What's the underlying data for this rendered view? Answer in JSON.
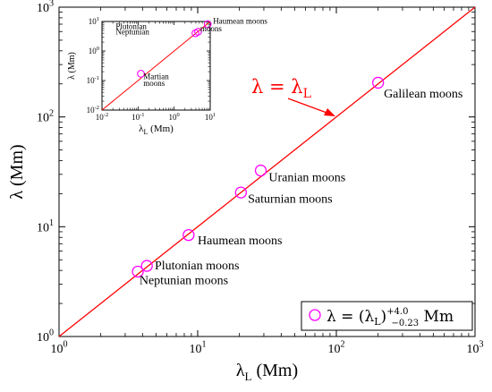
{
  "chart_data": [
    {
      "type": "scatter",
      "role": "main",
      "xscale": "log",
      "yscale": "log",
      "xlim": [
        1,
        1000
      ],
      "ylim": [
        1,
        1000
      ],
      "xlabel_main": "λ",
      "xlabel_sub": "L",
      "xlabel_unit": "(Mm)",
      "ylabel_main": "λ",
      "ylabel_unit": "(Mm)",
      "x_ticks": [
        1,
        10,
        100,
        1000
      ],
      "y_ticks": [
        1,
        10,
        100,
        1000
      ],
      "tick_base": "10",
      "tick_exponents": [
        "0",
        "1",
        "2",
        "3"
      ],
      "marker_color": "#ff00ff",
      "line_color": "#ff0000",
      "points": [
        {
          "x": 3.7,
          "y": 3.9
        },
        {
          "x": 4.3,
          "y": 4.4
        },
        {
          "x": 8.6,
          "y": 8.4
        },
        {
          "x": 20.5,
          "y": 20.5
        },
        {
          "x": 28.5,
          "y": 32.5
        },
        {
          "x": 200,
          "y": 205
        }
      ],
      "line": {
        "x": [
          1,
          1000
        ],
        "y": [
          1,
          1000
        ]
      },
      "labels": [
        {
          "text": "Neptunian moons",
          "x": 3.8,
          "y": 3.0
        },
        {
          "text": "Plutonian moons",
          "x": 4.9,
          "y": 4.1
        },
        {
          "text": "Haumean moons",
          "x": 10.0,
          "y": 6.9
        },
        {
          "text": "Saturnian moons",
          "x": 23.0,
          "y": 16.5
        },
        {
          "text": "Uranian moons",
          "x": 32.5,
          "y": 26.0
        },
        {
          "text": "Galilean moons",
          "x": 220,
          "y": 150
        }
      ],
      "eq_annotation": {
        "main": "λ = λ",
        "sub": "L"
      },
      "legend": {
        "position": "bottom-right",
        "lhs": "λ = (λ",
        "lhs_sub": "L",
        "close": ")",
        "sup": "+4.0",
        "sub": "−0.23",
        "unit": "Mm"
      }
    },
    {
      "type": "scatter",
      "role": "inset",
      "xscale": "log",
      "yscale": "log",
      "xlim": [
        0.01,
        10
      ],
      "ylim": [
        0.01,
        10
      ],
      "xlabel_main": "λ",
      "xlabel_sub": "L",
      "xlabel_unit": "(Mm)",
      "ylabel": "λ (Mm)",
      "x_ticks": [
        0.01,
        0.1,
        1,
        10
      ],
      "y_ticks": [
        0.01,
        0.1,
        1,
        10
      ],
      "tick_base": "10",
      "tick_exponents": [
        "-2",
        "-1",
        "0",
        "1"
      ],
      "points": [
        {
          "x": 0.12,
          "y": 0.17
        },
        {
          "x": 3.9,
          "y": 4.0
        },
        {
          "x": 4.6,
          "y": 4.5
        },
        {
          "x": 8.5,
          "y": 8.1
        }
      ],
      "line": {
        "x": [
          0.01,
          10
        ],
        "y": [
          0.01,
          10
        ]
      },
      "labels": [
        {
          "text": "Haumean moons",
          "x": 12,
          "y": 8.3
        },
        {
          "text": "moons",
          "x": 5.3,
          "y": 4.6
        },
        {
          "text": "Plutonian",
          "x": 0.024,
          "y": 5.6
        },
        {
          "text": "Neptunian",
          "x": 0.024,
          "y": 3.6
        },
        {
          "text": "Martian",
          "x": 0.14,
          "y": 0.11
        },
        {
          "text": "moons",
          "x": 0.14,
          "y": 0.065
        }
      ]
    }
  ]
}
